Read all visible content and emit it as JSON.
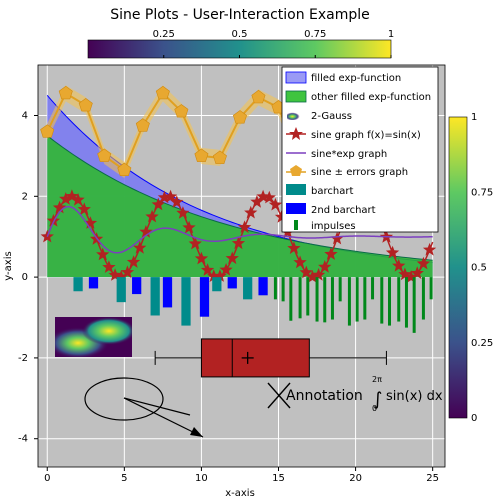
{
  "chart_data": {
    "type": "line",
    "title": "Sine Plots - User-Interaction Example",
    "xlabel": "x-axis",
    "ylabel": "y-axis",
    "xlim": [
      -0.6,
      25.8
    ],
    "ylim": [
      -4.7,
      5.25
    ],
    "xticks": [
      0,
      5,
      10,
      15,
      20,
      25
    ],
    "yticks": [
      -4,
      -2,
      0,
      2,
      4
    ],
    "grid": true,
    "legend_position": "top-right",
    "legend": [
      "filled exp-function",
      "other filled exp-function",
      "2-Gauss",
      "sine graph f(x)=sin(x)",
      "sine*exp graph",
      "sine ± errors graph",
      "barchart",
      "2nd barchart",
      "impulses"
    ],
    "colorbar_top": {
      "ticks": [
        "0.25",
        "0.5",
        "0.75",
        "1"
      ],
      "range": [
        0,
        1
      ]
    },
    "colorbar_right": {
      "ticks": [
        "1",
        "0.75",
        "0.5",
        "0.25",
        "0"
      ],
      "range": [
        0,
        1
      ]
    },
    "series": [
      {
        "name": "filled exp-function",
        "kind": "area",
        "color": "#6b6bf0",
        "formula": "4.5*exp(-0.1x)"
      },
      {
        "name": "other filled exp-function",
        "kind": "area",
        "color": "#22bb22",
        "formula": "3.5*exp(-0.085x)"
      },
      {
        "name": "sine graph f(x)=sin(x)",
        "kind": "line",
        "color": "#b22222",
        "formula": "1+sin(x)"
      },
      {
        "name": "sine*exp graph",
        "kind": "line",
        "color": "#7b3fbf",
        "formula": "1+sin(x)*exp(-0.2x)"
      },
      {
        "name": "sine ± errors graph",
        "kind": "line-errors",
        "color": "#e0a020",
        "x": [
          0,
          1.2,
          2.5,
          3.7,
          5,
          6.2,
          7.5,
          8.7,
          10,
          11.2,
          12.5,
          13.7,
          15,
          16.2,
          17.5,
          18.7
        ],
        "y": [
          3.6,
          4.55,
          4.25,
          3.0,
          2.65,
          3.75,
          4.55,
          4.1,
          3.0,
          2.95,
          3.95,
          4.45,
          4.2,
          3.0,
          2.85,
          3.7
        ]
      },
      {
        "name": "barchart",
        "kind": "bar",
        "color": "#008b8b",
        "x": [
          2,
          4.8,
          7,
          9,
          11,
          13
        ],
        "values": [
          -0.35,
          -0.62,
          -0.95,
          -1.2,
          -0.35,
          -0.55
        ]
      },
      {
        "name": "2nd barchart",
        "kind": "bar",
        "color": "#0000ff",
        "x": [
          3,
          5.8,
          7.8,
          10.2,
          12,
          14
        ],
        "values": [
          -0.28,
          -0.42,
          -0.75,
          -0.98,
          -0.28,
          -0.45
        ]
      },
      {
        "name": "impulses",
        "kind": "impulse",
        "color": "#00881a",
        "x": [
          14.8,
          15.3,
          15.8,
          16.4,
          16.9,
          17.5,
          18.0,
          18.5,
          19.0,
          19.6,
          20.1,
          20.6,
          21.1,
          21.7,
          22.2,
          22.8,
          23.3,
          23.8,
          24.4,
          24.9
        ],
        "values": [
          -0.55,
          -0.6,
          -1.08,
          -1.02,
          -0.95,
          -1.1,
          -1.12,
          -1.05,
          -0.6,
          -1.2,
          -1.1,
          -1.05,
          -0.55,
          -1.15,
          -1.2,
          -1.1,
          -1.25,
          -1.38,
          -1.05,
          -0.55
        ]
      }
    ],
    "boxplot": {
      "min": 7,
      "q1": 10,
      "median": 12,
      "mean": 13,
      "q3": 17,
      "max": 22,
      "y": -2,
      "color": "#b22222"
    },
    "annotation_text": "Annotation",
    "formula": {
      "upper": "2π",
      "lower": "0",
      "body": "sin(x) dx"
    }
  }
}
